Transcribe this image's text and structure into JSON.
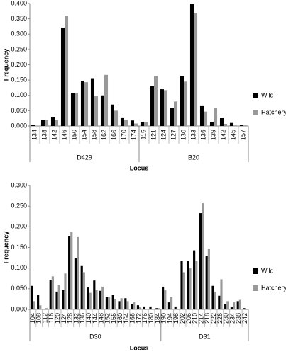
{
  "chart_data": [
    {
      "type": "bar",
      "y_label": "Frequency",
      "x_label": "Locus",
      "groups": [
        {
          "name": "D429",
          "categories": [
            "134",
            "138",
            "142",
            "146",
            "150",
            "154",
            "158",
            "162",
            "166",
            "170",
            "174"
          ]
        },
        {
          "name": "B20",
          "categories": [
            "115",
            "121",
            "124",
            "127",
            "130",
            "133",
            "136",
            "139",
            "142",
            "145",
            "157"
          ]
        }
      ],
      "series": [
        {
          "name": "Wild",
          "color": "#000000",
          "values": [
            0.003,
            0.02,
            0.03,
            0.32,
            0.108,
            0.148,
            0.156,
            0.1,
            0.07,
            0.028,
            0.018,
            0.013,
            0.13,
            0.12,
            0.06,
            0.163,
            0.4,
            0.065,
            0.013,
            0.027,
            0.01,
            0.003
          ]
        },
        {
          "name": "Hatchery",
          "color": "#999999",
          "values": [
            0.0,
            0.02,
            0.02,
            0.36,
            0.108,
            0.143,
            0.097,
            0.167,
            0.05,
            0.02,
            0.008,
            0.013,
            0.163,
            0.117,
            0.08,
            0.145,
            0.37,
            0.047,
            0.06,
            0.007,
            0.002,
            0.002
          ]
        }
      ],
      "ylim": [
        0,
        0.4
      ],
      "yticks": [
        {
          "value": 0,
          "label": "0.000"
        },
        {
          "value": 0.05,
          "label": "0.050"
        },
        {
          "value": 0.1,
          "label": "0.100"
        },
        {
          "value": 0.15,
          "label": "0.150"
        },
        {
          "value": 0.2,
          "label": "0.200"
        },
        {
          "value": 0.25,
          "label": "0.250"
        },
        {
          "value": 0.3,
          "label": "0.300"
        },
        {
          "value": 0.35,
          "label": "0.350"
        },
        {
          "value": 0.4,
          "label": "0.400"
        }
      ],
      "legend": "right"
    },
    {
      "type": "bar",
      "y_label": "Frequency",
      "x_label": "Locus",
      "groups": [
        {
          "name": "D30",
          "categories": [
            "104",
            "108",
            "112",
            "116",
            "120",
            "124",
            "128",
            "132",
            "136",
            "140",
            "144",
            "148",
            "152",
            "156",
            "160",
            "164",
            "168",
            "172",
            "176",
            "180",
            "184"
          ]
        },
        {
          "name": "D31",
          "categories": [
            "190",
            "194",
            "198",
            "202",
            "206",
            "210",
            "214",
            "218",
            "222",
            "226",
            "230",
            "234",
            "238",
            "242"
          ]
        }
      ],
      "series": [
        {
          "name": "Wild",
          "color": "#000000",
          "values": [
            0.057,
            0.035,
            0.0,
            0.072,
            0.043,
            0.047,
            0.178,
            0.125,
            0.105,
            0.053,
            0.07,
            0.045,
            0.03,
            0.035,
            0.02,
            0.027,
            0.013,
            0.01,
            0.007,
            0.007,
            0.003,
            0.055,
            0.017,
            0.007,
            0.117,
            0.118,
            0.143,
            0.233,
            0.13,
            0.057,
            0.033,
            0.013,
            0.005,
            0.02,
            0.003
          ]
        },
        {
          "name": "Hatchery",
          "color": "#999999",
          "values": [
            0.02,
            0.01,
            0.003,
            0.08,
            0.06,
            0.087,
            0.187,
            0.175,
            0.09,
            0.04,
            0.047,
            0.055,
            0.03,
            0.025,
            0.027,
            0.02,
            0.017,
            0.005,
            0.0,
            0.0,
            0.003,
            0.047,
            0.03,
            0.0,
            0.09,
            0.1,
            0.117,
            0.257,
            0.147,
            0.043,
            0.073,
            0.02,
            0.017,
            0.023,
            0.0
          ]
        }
      ],
      "ylim": [
        0,
        0.3
      ],
      "yticks": [
        {
          "value": 0,
          "label": "0.000"
        },
        {
          "value": 0.05,
          "label": "0.050"
        },
        {
          "value": 0.1,
          "label": "0.100"
        },
        {
          "value": 0.15,
          "label": "0.150"
        },
        {
          "value": 0.2,
          "label": "0.200"
        },
        {
          "value": 0.25,
          "label": "0.250"
        },
        {
          "value": 0.3,
          "label": "0.300"
        }
      ],
      "legend": "right"
    }
  ]
}
